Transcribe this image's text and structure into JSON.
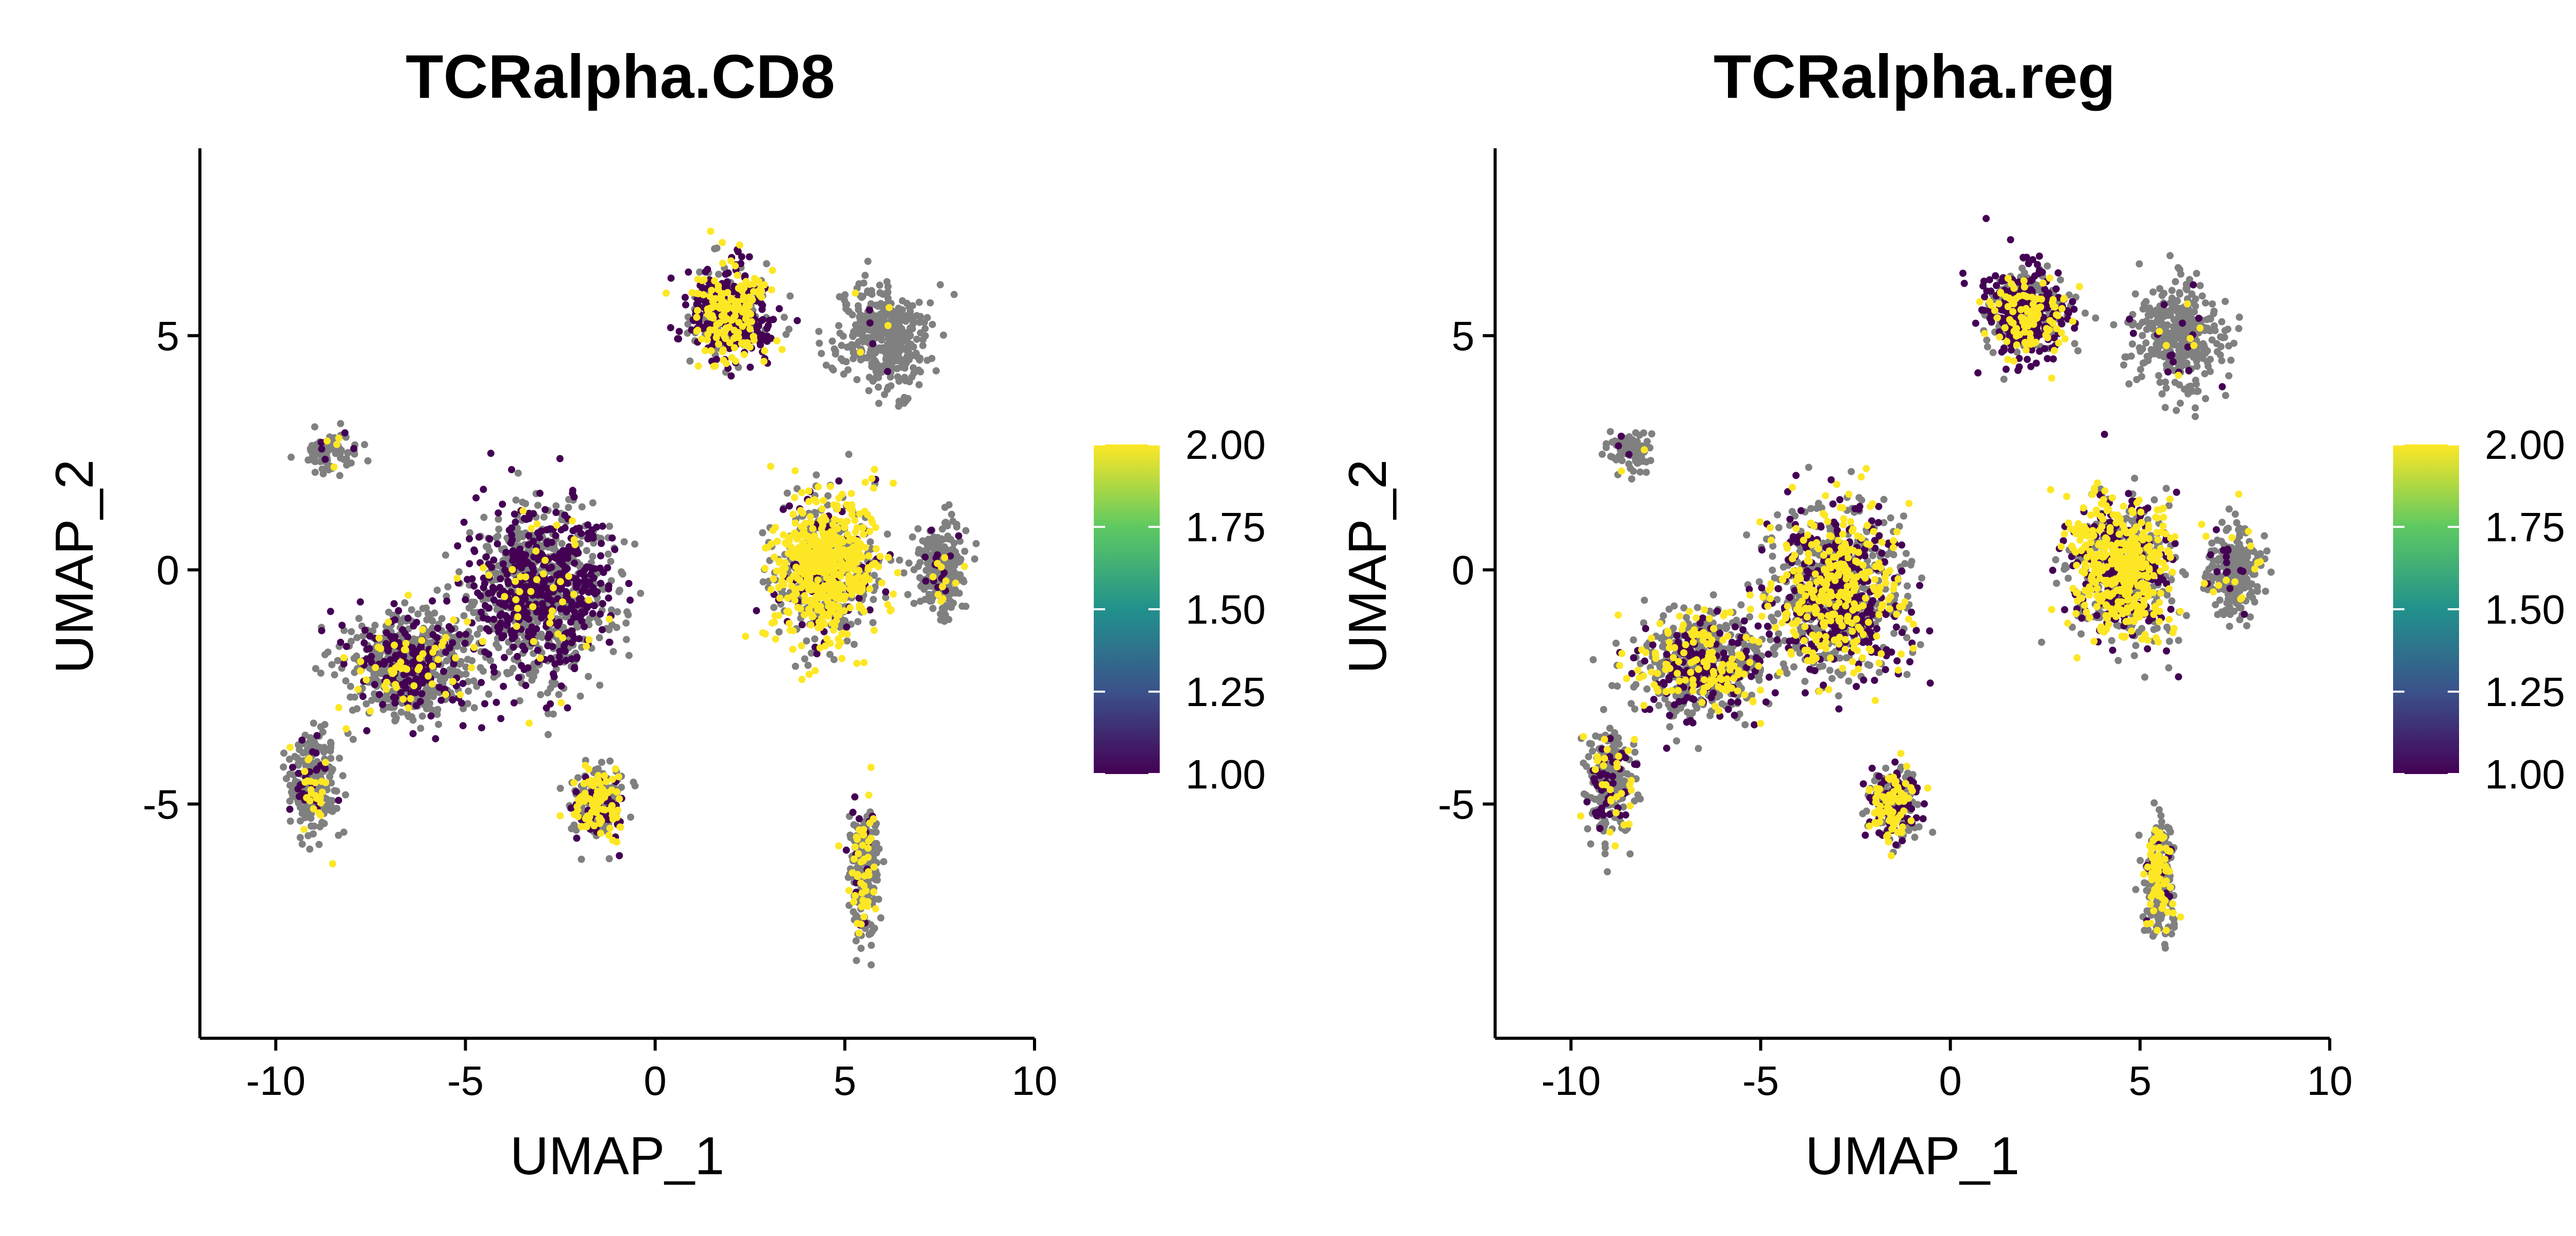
{
  "chart_data": [
    {
      "type": "scatter",
      "title": "TCRalpha.CD8",
      "xlabel": "UMAP_1",
      "ylabel": "UMAP_2",
      "xlim": [
        -12,
        10
      ],
      "ylim": [
        -10,
        9
      ],
      "x_ticks": [
        -10,
        -5,
        0,
        5,
        10
      ],
      "x_tick_labels": [
        "-10",
        "-5",
        "0",
        "5",
        "10"
      ],
      "y_ticks": [
        -5,
        0,
        5
      ],
      "y_tick_labels": [
        "-5",
        "0",
        "5"
      ],
      "grid": false,
      "background_color": "#808080",
      "colorscale": "viridis",
      "colorbar": {
        "min": 1.0,
        "max": 2.0,
        "tick_values": [
          1.0,
          1.25,
          1.5,
          1.75,
          2.0
        ],
        "tick_labels": [
          "1.00",
          "1.25",
          "1.50",
          "1.75",
          "2.00"
        ],
        "placement": "right"
      },
      "clusters": [
        {
          "x": 2.0,
          "y": 5.5,
          "low_share": 0.45,
          "high_share": 0.3
        },
        {
          "x": 6.0,
          "y": 5.0,
          "low_share": 0.02,
          "high_share": 0.02
        },
        {
          "x": 4.5,
          "y": 0.0,
          "low_share": 0.1,
          "high_share": 0.55
        },
        {
          "x": 7.5,
          "y": 0.0,
          "low_share": 0.05,
          "high_share": 0.05
        },
        {
          "x": -3.0,
          "y": -0.5,
          "low_share": 0.4,
          "high_share": 0.05
        },
        {
          "x": -6.5,
          "y": -2.0,
          "low_share": 0.25,
          "high_share": 0.08
        },
        {
          "x": -9.0,
          "y": -4.5,
          "low_share": 0.1,
          "high_share": 0.1
        },
        {
          "x": -1.5,
          "y": -5.0,
          "low_share": 0.2,
          "high_share": 0.35
        },
        {
          "x": 5.5,
          "y": -6.5,
          "low_share": 0.05,
          "high_share": 0.25
        },
        {
          "x": -8.5,
          "y": 2.5,
          "low_share": 0.05,
          "high_share": 0.05
        }
      ]
    },
    {
      "type": "scatter",
      "title": "TCRalpha.reg",
      "xlabel": "UMAP_1",
      "ylabel": "UMAP_2",
      "xlim": [
        -12,
        10
      ],
      "ylim": [
        -10,
        9
      ],
      "x_ticks": [
        -10,
        -5,
        0,
        5,
        10
      ],
      "x_tick_labels": [
        "-10",
        "-5",
        "0",
        "5",
        "10"
      ],
      "y_ticks": [
        -5,
        0,
        5
      ],
      "y_tick_labels": [
        "-5",
        "0",
        "5"
      ],
      "grid": false,
      "background_color": "#808080",
      "colorscale": "viridis",
      "colorbar": {
        "min": 1.0,
        "max": 2.0,
        "tick_values": [
          1.0,
          1.25,
          1.5,
          1.75,
          2.0
        ],
        "tick_labels": [
          "1.00",
          "1.25",
          "1.50",
          "1.75",
          "2.00"
        ],
        "placement": "right"
      },
      "clusters": [
        {
          "x": 2.0,
          "y": 5.5,
          "low_share": 0.5,
          "high_share": 0.2
        },
        {
          "x": 6.0,
          "y": 5.0,
          "low_share": 0.03,
          "high_share": 0.02
        },
        {
          "x": 4.5,
          "y": 0.0,
          "low_share": 0.25,
          "high_share": 0.45
        },
        {
          "x": 7.5,
          "y": 0.0,
          "low_share": 0.05,
          "high_share": 0.05
        },
        {
          "x": -3.0,
          "y": -0.5,
          "low_share": 0.3,
          "high_share": 0.25
        },
        {
          "x": -6.5,
          "y": -2.0,
          "low_share": 0.2,
          "high_share": 0.2
        },
        {
          "x": -9.0,
          "y": -4.5,
          "low_share": 0.15,
          "high_share": 0.15
        },
        {
          "x": -1.5,
          "y": -5.0,
          "low_share": 0.3,
          "high_share": 0.3
        },
        {
          "x": 5.5,
          "y": -6.5,
          "low_share": 0.05,
          "high_share": 0.25
        },
        {
          "x": -8.5,
          "y": 2.5,
          "low_share": 0.05,
          "high_share": 0.05
        }
      ]
    }
  ]
}
